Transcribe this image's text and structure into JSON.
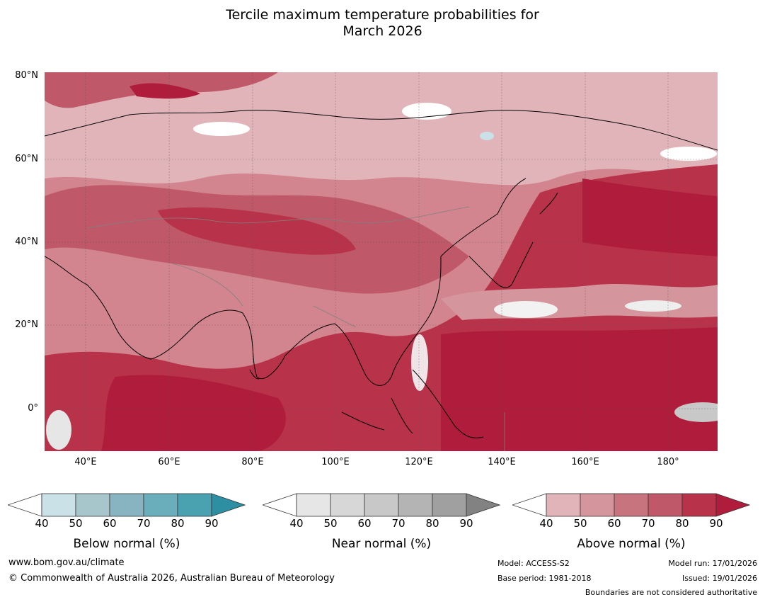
{
  "title": {
    "line1": "Tercile maximum temperature probabilities for",
    "line2": "March 2026"
  },
  "map": {
    "lat_labels": [
      "80°N",
      "60°N",
      "40°N",
      "20°N",
      "0°"
    ],
    "lon_labels": [
      "40°E",
      "60°E",
      "80°E",
      "100°E",
      "120°E",
      "140°E",
      "160°E",
      "180°"
    ]
  },
  "legends": [
    {
      "title": "Below normal (%)",
      "ticks": [
        "40",
        "50",
        "60",
        "70",
        "80",
        "90"
      ],
      "colors": [
        "#ffffff",
        "#c9e1e7",
        "#a7c6cc",
        "#87b4c0",
        "#6aaebb",
        "#4aa1b0",
        "#2e8fa2"
      ]
    },
    {
      "title": "Near normal (%)",
      "ticks": [
        "40",
        "50",
        "60",
        "70",
        "80",
        "90"
      ],
      "colors": [
        "#ffffff",
        "#e6e6e6",
        "#d7d7d7",
        "#c8c8c8",
        "#b4b4b4",
        "#a0a0a0",
        "#828282"
      ]
    },
    {
      "title": "Above normal (%)",
      "ticks": [
        "40",
        "50",
        "60",
        "70",
        "80",
        "90"
      ],
      "colors": [
        "#ffffff",
        "#e1b4b9",
        "#d4959d",
        "#c8747f",
        "#bf5868",
        "#b83349",
        "#b01c3b"
      ]
    }
  ],
  "footer": {
    "website": "www.bom.gov.au/climate",
    "copyright": "© Commonwealth of Australia 2026, Australian Bureau of Meteorology",
    "model": "Model: ACCESS-S2",
    "base_period": "Base period: 1981-2018",
    "model_run": "Model run: 17/01/2026",
    "issued": "Issued: 19/01/2026",
    "disclaimer": "Boundaries are not considered authoritative"
  }
}
